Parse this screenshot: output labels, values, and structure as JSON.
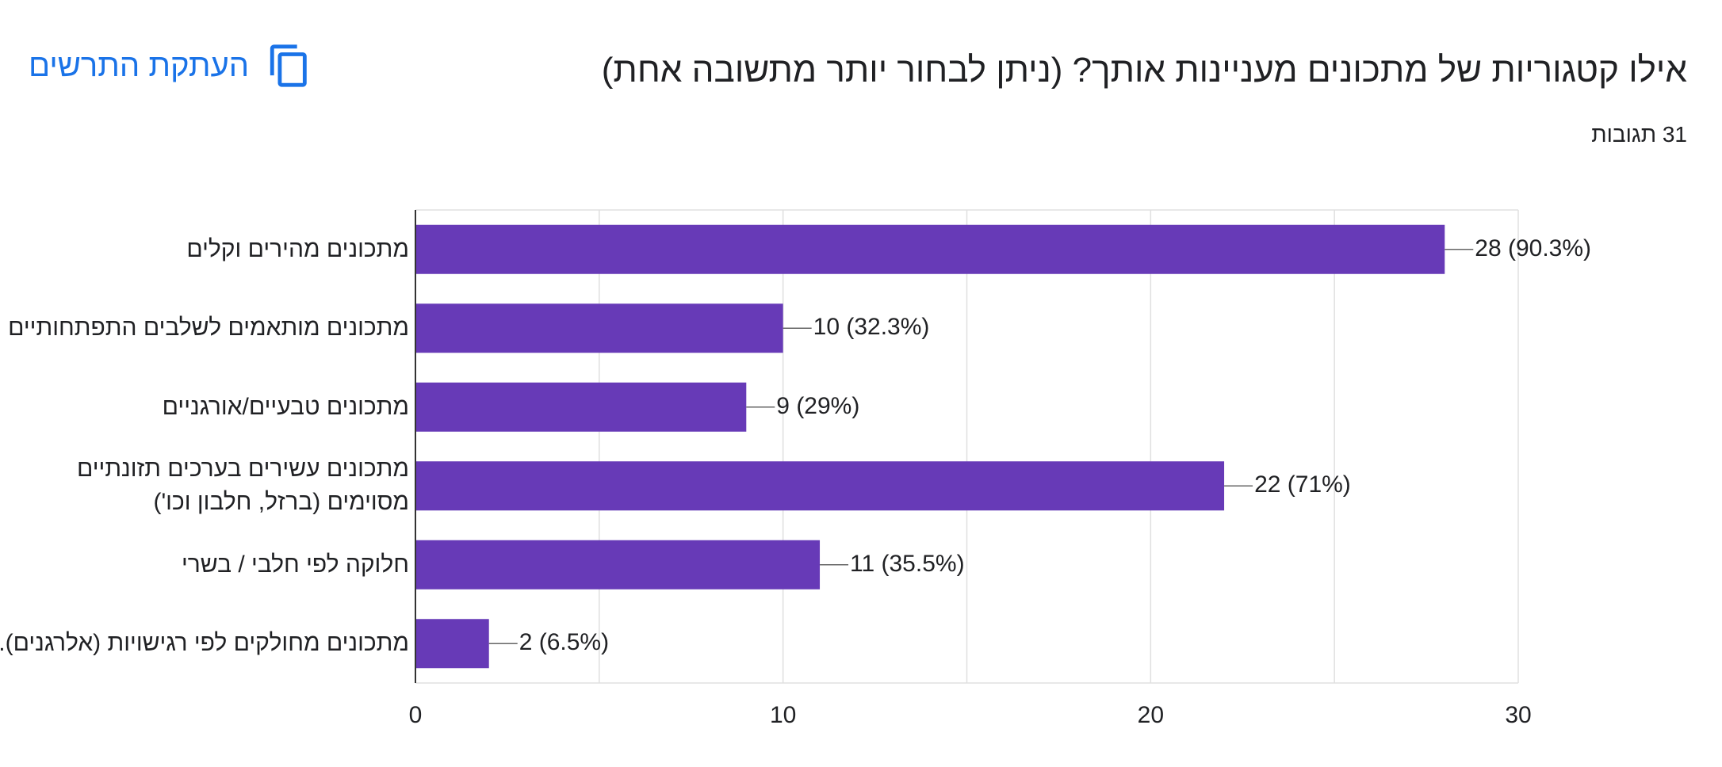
{
  "header": {
    "question": "אילו קטגוריות של מתכונים מעניינות אותך? (ניתן לבחור יותר מתשובה אחת)",
    "responses": "31 תגובות",
    "copy_label": "העתקת התרשים",
    "copy_icon": "copy-icon",
    "accent_color": "#1a73e8"
  },
  "chart_data": {
    "type": "bar",
    "orientation": "horizontal",
    "title": "אילו קטגוריות של מתכונים מעניינות אותך? (ניתן לבחור יותר מתשובה אחת)",
    "categories": [
      "מתכונים מהירים וקלים",
      "מתכונים מותאמים לשלבים התפתחותיים",
      "מתכונים טבעיים/אורגניים",
      "מתכונים עשירים בערכים תזונתיים מסוימים (ברזל, חלבון וכו')",
      "חלוקה לפי חלבי / בשרי",
      "מתכונים מחולקים לפי רגישויות (אלרגנים)."
    ],
    "values": [
      28,
      10,
      9,
      22,
      11,
      2
    ],
    "value_labels": [
      "28 (90.3%)",
      "10 (32.3%)",
      "9 (29%)",
      "22 (71%)",
      "11 (35.5%)",
      "2 (6.5%)"
    ],
    "xlim": [
      0,
      30
    ],
    "xticks": [
      "0",
      "10",
      "20",
      "30"
    ],
    "bar_color": "#673ab7",
    "grid": true,
    "xlabel": "",
    "ylabel": ""
  }
}
